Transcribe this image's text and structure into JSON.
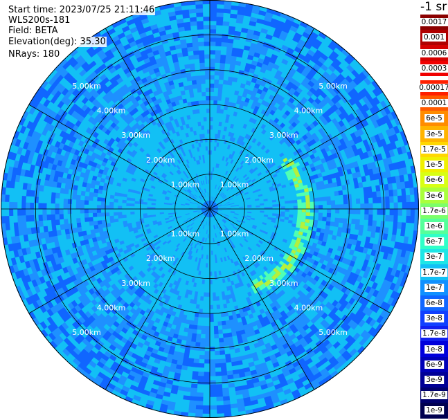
{
  "info": {
    "start_time": "Start time: 2023/07/25 21:11:46",
    "instrument": "WLS200s-181",
    "field": "Field: BETA",
    "elevation": "Elevation(deg): 35.30",
    "nrays": "NRays: 180"
  },
  "chart_data": {
    "type": "heatmap",
    "projection": "polar-ppi",
    "title": "",
    "field": "BETA",
    "elevation_deg": 35.3,
    "n_rays": 180,
    "max_range_km": 6.0,
    "range_rings_km": [
      1,
      2,
      3,
      4,
      5
    ],
    "range_ring_labels": [
      "1.00km",
      "2.00km",
      "3.00km",
      "4.00km",
      "5.00km"
    ],
    "spoke_interval_deg": 30,
    "background_level": "1.7e-7 to 6e-7 (mostly 3e-7 / 6e-8 on outer rings)",
    "features": [
      {
        "description": "arc of elevated backscatter",
        "range_km": [
          2.0,
          3.0
        ],
        "azimuth_deg": [
          55,
          150
        ],
        "level": "1.7e-6 to 3e-6"
      }
    ],
    "colorbar": {
      "unit": "-1 sr",
      "labels": [
        "0.0017",
        "0.001",
        "0.0006",
        "0.0003",
        "0.00017",
        "0.0001",
        "6e-5",
        "3e-5",
        "1.7e-5",
        "1e-5",
        "6e-6",
        "3e-6",
        "1.7e-6",
        "1e-6",
        "6e-7",
        "3e-7",
        "1.7e-7",
        "1e-7",
        "6e-8",
        "3e-8",
        "1.7e-8",
        "1e-8",
        "6e-9",
        "3e-9",
        "1.7e-9",
        "1e-9"
      ],
      "colors": [
        "#8b0000",
        "#b00000",
        "#d40000",
        "#f00000",
        "#ff2000",
        "#ff5a00",
        "#ff8c00",
        "#ffb400",
        "#ffd700",
        "#f0f000",
        "#d8ff14",
        "#aaff3c",
        "#7dff6a",
        "#55ff9a",
        "#30ffc8",
        "#1ee6e6",
        "#12c0f5",
        "#1090ff",
        "#1066ff",
        "#1040ff",
        "#1020f0",
        "#0000dc",
        "#0000b8",
        "#000096",
        "#00006e",
        "#000050"
      ]
    },
    "colors": {
      "ring_background": "#12c0f5",
      "inner_mid": "#1e90ff",
      "outer_mid": "#1066ff",
      "feature_hi": "#b4f03c",
      "feature_mid": "#50ffb4",
      "grid_line": "#000000"
    }
  }
}
